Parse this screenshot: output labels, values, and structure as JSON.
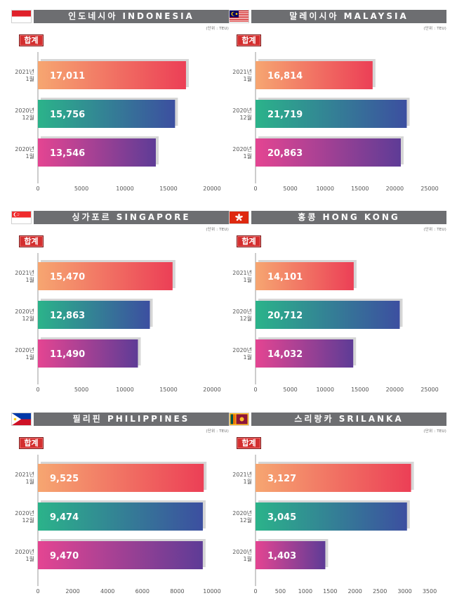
{
  "unit_label": "(단위 : TEU)",
  "total_label": "합계",
  "colors": {
    "title_bg": "#6d6e71",
    "badge": "#d32f2f",
    "bar_2021_1": [
      "#f6a671",
      "#ec3f56"
    ],
    "bar_2020_12": [
      "#2bb38a",
      "#3c4fa0"
    ],
    "bar_2020_1": [
      "#e44592",
      "#5e3c96"
    ]
  },
  "panels": [
    {
      "title": "인도네시아 INDONESIA",
      "flag": "indonesia-flag"
    },
    {
      "title": "말레이시아 MALAYSIA",
      "flag": "malaysia-flag"
    },
    {
      "title": "싱가포르 SINGAPORE",
      "flag": "singapore-flag"
    },
    {
      "title": "홍콩 HONG KONG",
      "flag": "hongkong-flag"
    },
    {
      "title": "필리핀 PHILIPPINES",
      "flag": "philippines-flag"
    },
    {
      "title": "스리랑카 SRILANKA",
      "flag": "srilanka-flag"
    }
  ],
  "chart_data": [
    {
      "type": "bar",
      "orientation": "horizontal",
      "title": "인도네시아 INDONESIA",
      "categories": [
        [
          "2021년",
          "1월"
        ],
        [
          "2020년",
          "12월"
        ],
        [
          "2020년",
          "1월"
        ]
      ],
      "values": [
        17011,
        15756,
        13546
      ],
      "value_labels": [
        "17,011",
        "15,756",
        "13,546"
      ],
      "xlim": [
        0,
        20000
      ],
      "ticks": [
        0,
        5000,
        10000,
        15000,
        20000
      ]
    },
    {
      "type": "bar",
      "orientation": "horizontal",
      "title": "말레이시아 MALAYSIA",
      "categories": [
        [
          "2021년",
          "1월"
        ],
        [
          "2020년",
          "12월"
        ],
        [
          "2020년",
          "1월"
        ]
      ],
      "values": [
        16814,
        21719,
        20863
      ],
      "value_labels": [
        "16,814",
        "21,719",
        "20,863"
      ],
      "xlim": [
        0,
        25000
      ],
      "ticks": [
        0,
        5000,
        10000,
        15000,
        20000,
        25000
      ]
    },
    {
      "type": "bar",
      "orientation": "horizontal",
      "title": "싱가포르 SINGAPORE",
      "categories": [
        [
          "2021년",
          "1월"
        ],
        [
          "2020년",
          "12월"
        ],
        [
          "2020년",
          "1월"
        ]
      ],
      "values": [
        15470,
        12863,
        11490
      ],
      "value_labels": [
        "15,470",
        "12,863",
        "11,490"
      ],
      "xlim": [
        0,
        20000
      ],
      "ticks": [
        0,
        5000,
        10000,
        15000,
        20000
      ]
    },
    {
      "type": "bar",
      "orientation": "horizontal",
      "title": "홍콩 HONG KONG",
      "categories": [
        [
          "2021년",
          "1월"
        ],
        [
          "2020년",
          "12월"
        ],
        [
          "2020년",
          "1월"
        ]
      ],
      "values": [
        14101,
        20712,
        14032
      ],
      "value_labels": [
        "14,101",
        "20,712",
        "14,032"
      ],
      "xlim": [
        0,
        25000
      ],
      "ticks": [
        0,
        5000,
        10000,
        15000,
        20000,
        25000
      ]
    },
    {
      "type": "bar",
      "orientation": "horizontal",
      "title": "필리핀 PHILIPPINES",
      "categories": [
        [
          "2021년",
          "1월"
        ],
        [
          "2020년",
          "12월"
        ],
        [
          "2020년",
          "1월"
        ]
      ],
      "values": [
        9525,
        9474,
        9470
      ],
      "value_labels": [
        "9,525",
        "9,474",
        "9,470"
      ],
      "xlim": [
        0,
        10000
      ],
      "ticks": [
        0,
        2000,
        4000,
        6000,
        8000,
        10000
      ]
    },
    {
      "type": "bar",
      "orientation": "horizontal",
      "title": "스리랑카 SRILANKA",
      "categories": [
        [
          "2021년",
          "1월"
        ],
        [
          "2020년",
          "12월"
        ],
        [
          "2020년",
          "1월"
        ]
      ],
      "values": [
        3127,
        3045,
        1403
      ],
      "value_labels": [
        "3,127",
        "3,045",
        "1,403"
      ],
      "xlim": [
        0,
        3500
      ],
      "ticks": [
        0,
        500,
        1000,
        1500,
        2000,
        2500,
        3000,
        3500
      ]
    }
  ]
}
